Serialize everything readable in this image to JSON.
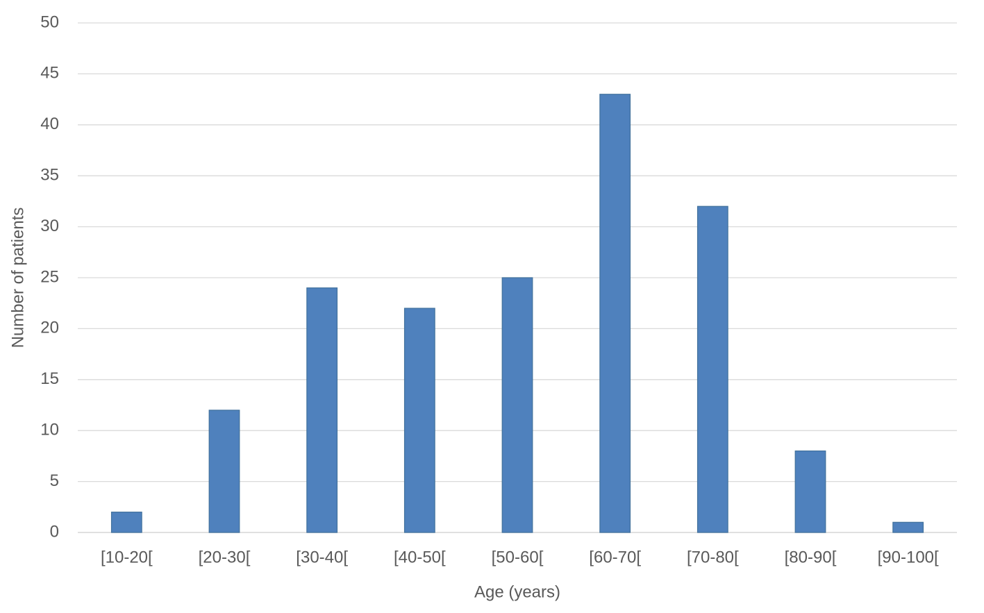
{
  "chart_data": {
    "type": "bar",
    "categories": [
      "[10-20[",
      "[20-30[",
      "[30-40[",
      "[40-50[",
      "[50-60[",
      "[60-70[",
      "[70-80[",
      "[80-90[",
      "[90-100["
    ],
    "values": [
      2,
      12,
      24,
      22,
      25,
      43,
      32,
      8,
      1
    ],
    "color": "#4f81bd",
    "x_label": "Age (years)",
    "y_label": "Number of patients",
    "ylim": [
      0,
      50
    ],
    "yticks": [
      0,
      5,
      10,
      15,
      20,
      25,
      30,
      35,
      40,
      45,
      50
    ],
    "grid": true
  }
}
